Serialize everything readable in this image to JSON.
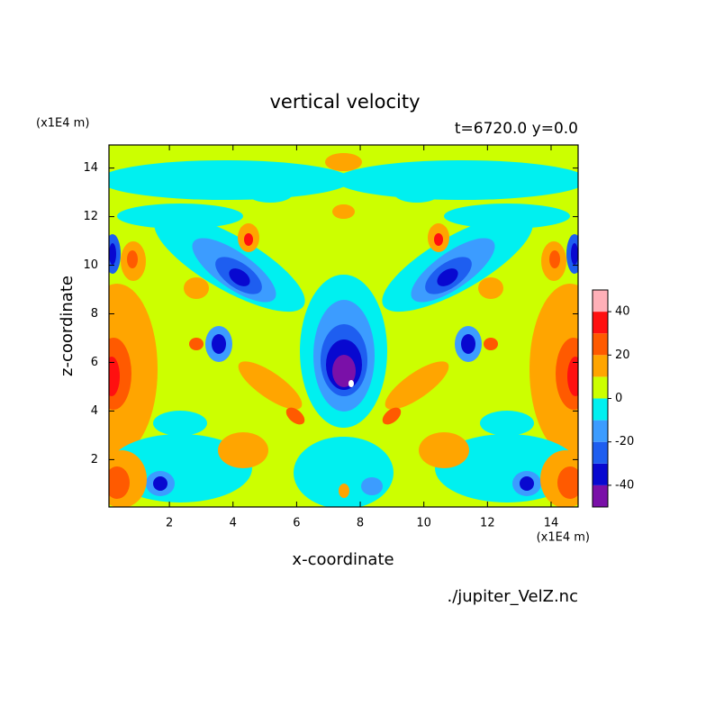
{
  "chart_data": {
    "type": "contour",
    "title": "vertical velocity",
    "subtitle": "t=6720.0 y=0.0",
    "xlabel": "x-coordinate",
    "ylabel": "z-coordinate",
    "x_unit": "(x1E4 m)",
    "y_unit": "(x1E4 m)",
    "source": "./jupiter_VelZ.nc",
    "xlim": [
      0.1,
      14.85
    ],
    "ylim": [
      0.05,
      14.95
    ],
    "xticks": [
      2,
      4,
      6,
      8,
      10,
      12,
      14
    ],
    "yticks": [
      2,
      4,
      6,
      8,
      10,
      12,
      14
    ],
    "colorbar": {
      "levels": [
        -50,
        -40,
        -30,
        -20,
        -10,
        0,
        10,
        20,
        30,
        40,
        50
      ],
      "colors": [
        "#7a10a8",
        "#0808d0",
        "#1e5ef0",
        "#3c9cff",
        "#00f0f0",
        "#ccff00",
        "#ffa500",
        "#ff5a00",
        "#ff1010",
        "#ffb0b8"
      ],
      "ticks": [
        -40,
        -20,
        0,
        20,
        40
      ]
    }
  }
}
